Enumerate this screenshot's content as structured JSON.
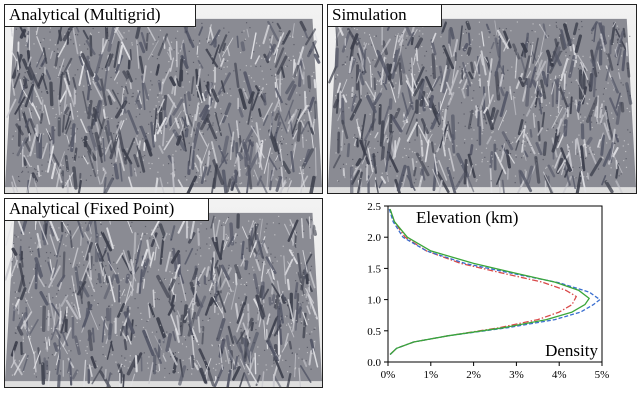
{
  "panels": [
    {
      "label": "Analytical (Multigrid)",
      "line_color": "#d94a4a",
      "line_style": "dashdot"
    },
    {
      "label": "Simulation",
      "line_color": "#3a6fd0",
      "line_style": "dashed"
    },
    {
      "label": "Analytical (Fixed Point)",
      "line_color": "#3aa63a",
      "line_style": "solid"
    }
  ],
  "chart_data": {
    "type": "line",
    "title": "Elevation (km)",
    "xlabel": "Density",
    "ylabel": "Elevation (km)",
    "xlim": [
      0,
      5
    ],
    "ylim": [
      0,
      2.5
    ],
    "x_ticks": [
      "0%",
      "1%",
      "2%",
      "3%",
      "4%",
      "5%"
    ],
    "y_ticks": [
      "0.0",
      "0.5",
      "1.0",
      "1.5",
      "2.0",
      "2.5"
    ],
    "grid": false,
    "series": [
      {
        "name": "Analytical (Multigrid)",
        "color": "#d94a4a",
        "style": "dashdot",
        "points": [
          [
            0.05,
            0.12
          ],
          [
            0.2,
            0.22
          ],
          [
            0.6,
            0.32
          ],
          [
            1.4,
            0.42
          ],
          [
            2.6,
            0.55
          ],
          [
            3.5,
            0.68
          ],
          [
            4.0,
            0.8
          ],
          [
            4.3,
            0.92
          ],
          [
            4.4,
            1.05
          ],
          [
            4.15,
            1.15
          ],
          [
            3.6,
            1.28
          ],
          [
            2.7,
            1.42
          ],
          [
            1.7,
            1.58
          ],
          [
            0.9,
            1.78
          ],
          [
            0.4,
            2.0
          ],
          [
            0.15,
            2.25
          ],
          [
            0.05,
            2.45
          ]
        ]
      },
      {
        "name": "Simulation",
        "color": "#3a6fd0",
        "style": "dashed",
        "points": [
          [
            0.05,
            0.12
          ],
          [
            0.2,
            0.22
          ],
          [
            0.6,
            0.32
          ],
          [
            1.4,
            0.42
          ],
          [
            2.8,
            0.55
          ],
          [
            3.9,
            0.68
          ],
          [
            4.5,
            0.8
          ],
          [
            4.8,
            0.92
          ],
          [
            4.95,
            1.0
          ],
          [
            4.7,
            1.12
          ],
          [
            4.0,
            1.27
          ],
          [
            2.9,
            1.42
          ],
          [
            1.8,
            1.58
          ],
          [
            0.9,
            1.78
          ],
          [
            0.35,
            2.0
          ],
          [
            0.12,
            2.25
          ],
          [
            0.03,
            2.45
          ]
        ]
      },
      {
        "name": "Analytical (Fixed Point)",
        "color": "#3aa63a",
        "style": "solid",
        "points": [
          [
            0.05,
            0.12
          ],
          [
            0.2,
            0.22
          ],
          [
            0.6,
            0.32
          ],
          [
            1.4,
            0.42
          ],
          [
            2.7,
            0.55
          ],
          [
            3.7,
            0.68
          ],
          [
            4.3,
            0.8
          ],
          [
            4.6,
            0.92
          ],
          [
            4.7,
            1.02
          ],
          [
            4.45,
            1.15
          ],
          [
            3.9,
            1.28
          ],
          [
            3.0,
            1.42
          ],
          [
            2.0,
            1.58
          ],
          [
            1.0,
            1.78
          ],
          [
            0.45,
            2.0
          ],
          [
            0.15,
            2.25
          ],
          [
            0.05,
            2.45
          ]
        ]
      }
    ]
  }
}
